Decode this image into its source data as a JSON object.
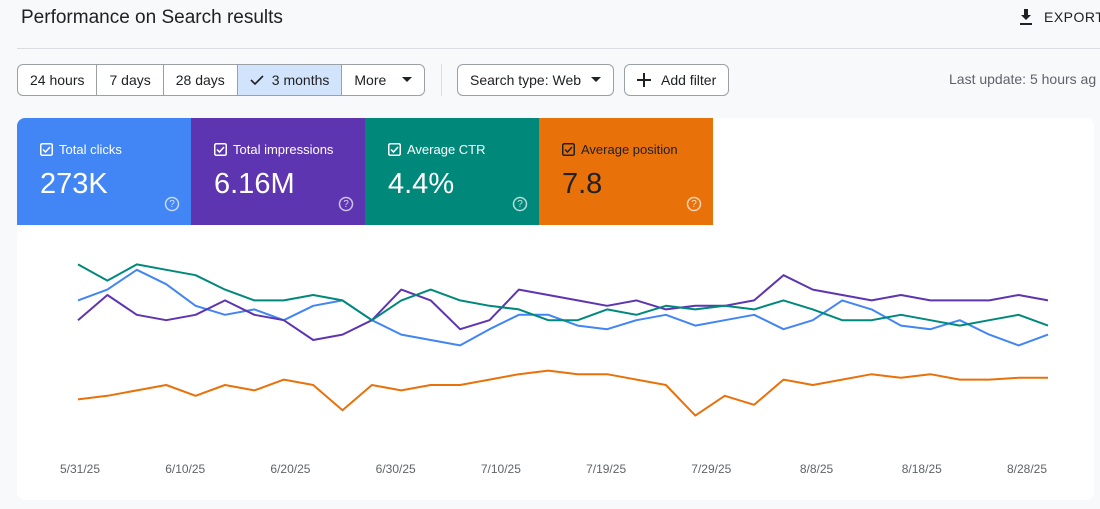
{
  "header": {
    "title": "Performance on Search results",
    "export": "EXPORT"
  },
  "filters": {
    "ranges": [
      "24 hours",
      "7 days",
      "28 days",
      "3 months",
      "More"
    ],
    "search_type": "Search type: Web",
    "add_filter": "Add filter",
    "last_update": "Last update: 5 hours ag"
  },
  "metrics": [
    {
      "label": "Total clicks",
      "value": "273K",
      "color": "#4285f4"
    },
    {
      "label": "Total impressions",
      "value": "6.16M",
      "color": "#5e35b1"
    },
    {
      "label": "Average CTR",
      "value": "4.4%",
      "color": "#00897b"
    },
    {
      "label": "Average position",
      "value": "7.8",
      "color": "#e8710a"
    }
  ],
  "chart_data": {
    "type": "line",
    "x_labels": [
      "5/31/25",
      "6/10/25",
      "6/20/25",
      "6/30/25",
      "7/10/25",
      "7/19/25",
      "7/29/25",
      "8/8/25",
      "8/18/25",
      "8/28/25"
    ],
    "ylim": [
      0,
      100
    ],
    "series": [
      {
        "color": "#4285f4",
        "values": [
          72,
          78,
          89,
          81,
          69,
          64,
          67,
          61,
          69,
          72,
          61,
          53,
          50,
          47,
          56,
          64,
          64,
          58,
          56,
          61,
          64,
          58,
          61,
          64,
          56,
          61,
          72,
          67,
          58,
          56,
          61,
          53,
          47,
          53
        ]
      },
      {
        "color": "#5e35b1",
        "values": [
          61,
          75,
          64,
          61,
          64,
          72,
          64,
          61,
          50,
          53,
          61,
          78,
          72,
          56,
          61,
          78,
          75,
          72,
          69,
          72,
          67,
          69,
          69,
          72,
          86,
          78,
          75,
          72,
          75,
          72,
          72,
          72,
          75,
          72
        ]
      },
      {
        "color": "#00897b",
        "values": [
          92,
          83,
          92,
          89,
          86,
          78,
          72,
          72,
          75,
          72,
          61,
          72,
          78,
          72,
          69,
          67,
          61,
          61,
          67,
          64,
          69,
          67,
          69,
          67,
          72,
          67,
          61,
          61,
          64,
          61,
          58,
          61,
          64,
          58
        ]
      },
      {
        "color": "#e8710a",
        "values": [
          17,
          19,
          22,
          25,
          19,
          25,
          22,
          28,
          25,
          11,
          25,
          22,
          25,
          25,
          28,
          31,
          33,
          31,
          31,
          28,
          25,
          8,
          19,
          14,
          28,
          25,
          28,
          31,
          29,
          31,
          28,
          28,
          29,
          29
        ]
      }
    ]
  }
}
